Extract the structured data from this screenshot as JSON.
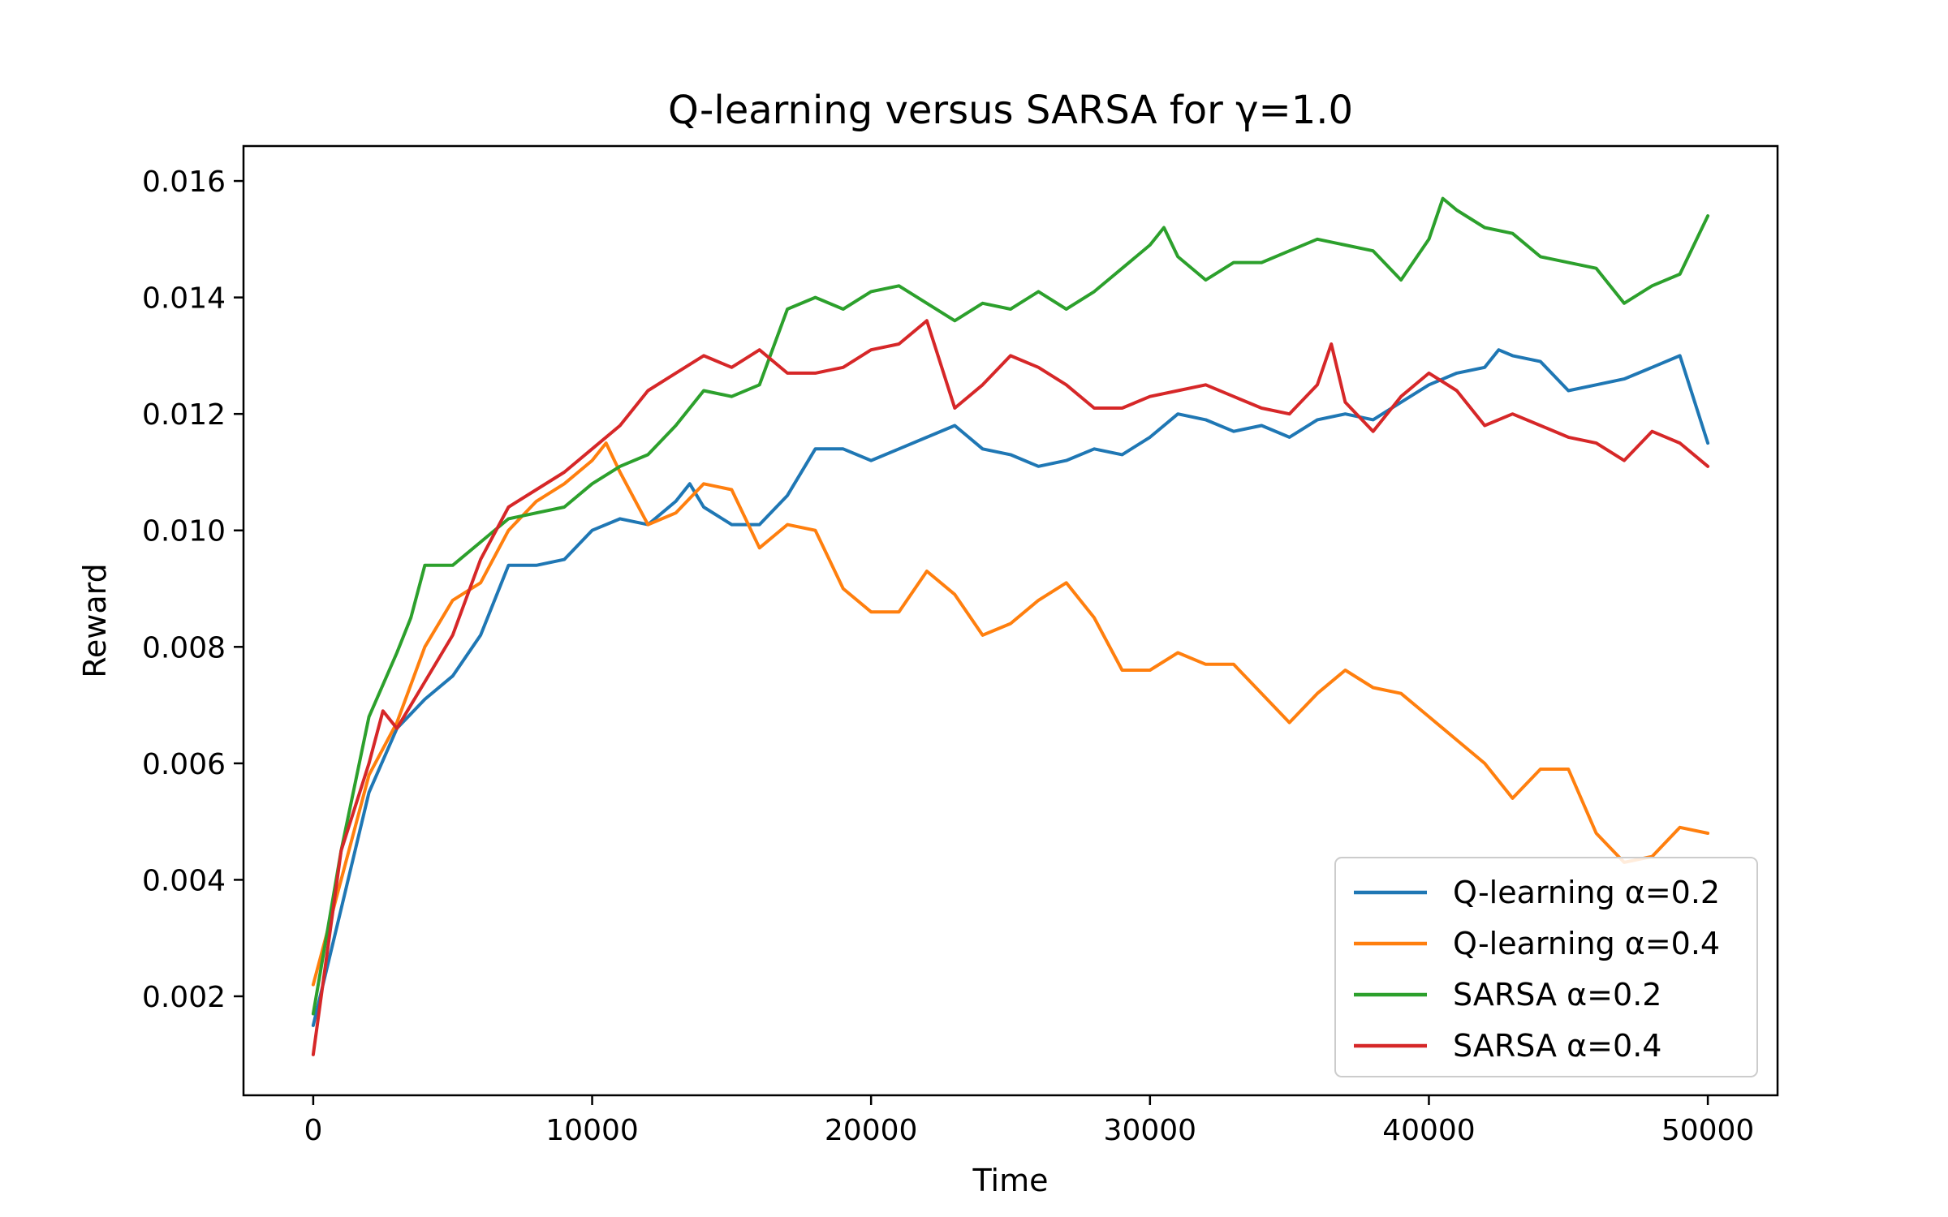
{
  "chart_data": {
    "type": "line",
    "title": "Q-learning versus SARSA for γ=1.0",
    "xlabel": "Time",
    "ylabel": "Reward",
    "xlim": [
      -2500,
      52500
    ],
    "ylim": [
      0.0003,
      0.0166
    ],
    "xticks": [
      0,
      10000,
      20000,
      30000,
      40000,
      50000
    ],
    "xtick_labels": [
      "0",
      "10000",
      "20000",
      "30000",
      "40000",
      "50000"
    ],
    "yticks": [
      0.002,
      0.004,
      0.006,
      0.008,
      0.01,
      0.012,
      0.014,
      0.016
    ],
    "ytick_labels": [
      "0.002",
      "0.004",
      "0.006",
      "0.008",
      "0.010",
      "0.012",
      "0.014",
      "0.016"
    ],
    "grid": false,
    "legend_position": "bottom-right",
    "series": [
      {
        "name": "Q-learning α=0.2",
        "color": "#1f77b4",
        "x": [
          0,
          1000,
          2000,
          3000,
          4000,
          5000,
          6000,
          7000,
          8000,
          9000,
          10000,
          11000,
          12000,
          13000,
          13500,
          14000,
          15000,
          16000,
          17000,
          18000,
          19000,
          20000,
          21000,
          22000,
          23000,
          24000,
          25000,
          26000,
          27000,
          28000,
          29000,
          30000,
          31000,
          32000,
          33000,
          34000,
          35000,
          36000,
          37000,
          38000,
          39000,
          40000,
          41000,
          42000,
          42500,
          43000,
          44000,
          45000,
          46000,
          47000,
          48000,
          49000,
          50000
        ],
        "y": [
          0.0015,
          0.0035,
          0.0055,
          0.0066,
          0.0071,
          0.0075,
          0.0082,
          0.0094,
          0.0094,
          0.0095,
          0.01,
          0.0102,
          0.0101,
          0.0105,
          0.0108,
          0.0104,
          0.0101,
          0.0101,
          0.0106,
          0.0114,
          0.0114,
          0.0112,
          0.0114,
          0.0116,
          0.0118,
          0.0114,
          0.0113,
          0.0111,
          0.0112,
          0.0114,
          0.0113,
          0.0116,
          0.012,
          0.0119,
          0.0117,
          0.0118,
          0.0116,
          0.0119,
          0.012,
          0.0119,
          0.0122,
          0.0125,
          0.0127,
          0.0128,
          0.0131,
          0.013,
          0.0129,
          0.0124,
          0.0125,
          0.0126,
          0.0128,
          0.013,
          0.0115
        ]
      },
      {
        "name": "Q-learning α=0.4",
        "color": "#ff7f0e",
        "x": [
          0,
          1000,
          2000,
          3000,
          4000,
          5000,
          6000,
          7000,
          8000,
          9000,
          10000,
          10500,
          11000,
          12000,
          13000,
          14000,
          15000,
          16000,
          17000,
          18000,
          19000,
          20000,
          21000,
          22000,
          23000,
          24000,
          25000,
          26000,
          27000,
          28000,
          29000,
          30000,
          31000,
          32000,
          33000,
          34000,
          35000,
          36000,
          37000,
          38000,
          39000,
          40000,
          41000,
          42000,
          43000,
          44000,
          45000,
          46000,
          47000,
          48000,
          49000,
          50000
        ],
        "y": [
          0.0022,
          0.004,
          0.0058,
          0.0067,
          0.008,
          0.0088,
          0.0091,
          0.01,
          0.0105,
          0.0108,
          0.0112,
          0.0115,
          0.011,
          0.0101,
          0.0103,
          0.0108,
          0.0107,
          0.0097,
          0.0101,
          0.01,
          0.009,
          0.0086,
          0.0086,
          0.0093,
          0.0089,
          0.0082,
          0.0084,
          0.0088,
          0.0091,
          0.0085,
          0.0076,
          0.0076,
          0.0079,
          0.0077,
          0.0077,
          0.0072,
          0.0067,
          0.0072,
          0.0076,
          0.0073,
          0.0072,
          0.0068,
          0.0064,
          0.006,
          0.0054,
          0.0059,
          0.0059,
          0.0048,
          0.0043,
          0.0044,
          0.0049,
          0.0048
        ]
      },
      {
        "name": "SARSA α=0.2",
        "color": "#2ca02c",
        "x": [
          0,
          1000,
          2000,
          3000,
          3500,
          4000,
          5000,
          6000,
          7000,
          8000,
          9000,
          10000,
          11000,
          12000,
          13000,
          14000,
          15000,
          16000,
          17000,
          18000,
          19000,
          20000,
          21000,
          22000,
          23000,
          24000,
          25000,
          26000,
          27000,
          28000,
          29000,
          30000,
          30500,
          31000,
          32000,
          33000,
          34000,
          35000,
          36000,
          37000,
          38000,
          39000,
          40000,
          40500,
          41000,
          42000,
          43000,
          44000,
          45000,
          46000,
          47000,
          48000,
          49000,
          50000
        ],
        "y": [
          0.0017,
          0.0045,
          0.0068,
          0.0079,
          0.0085,
          0.0094,
          0.0094,
          0.0098,
          0.0102,
          0.0103,
          0.0104,
          0.0108,
          0.0111,
          0.0113,
          0.0118,
          0.0124,
          0.0123,
          0.0125,
          0.0138,
          0.014,
          0.0138,
          0.0141,
          0.0142,
          0.0139,
          0.0136,
          0.0139,
          0.0138,
          0.0141,
          0.0138,
          0.0141,
          0.0145,
          0.0149,
          0.0152,
          0.0147,
          0.0143,
          0.0146,
          0.0146,
          0.0148,
          0.015,
          0.0149,
          0.0148,
          0.0143,
          0.015,
          0.0157,
          0.0155,
          0.0152,
          0.0151,
          0.0147,
          0.0146,
          0.0145,
          0.0139,
          0.0142,
          0.0144,
          0.0154
        ]
      },
      {
        "name": "SARSA α=0.4",
        "color": "#d62728",
        "x": [
          0,
          1000,
          2000,
          2500,
          3000,
          4000,
          5000,
          6000,
          7000,
          8000,
          9000,
          10000,
          11000,
          12000,
          13000,
          14000,
          15000,
          16000,
          17000,
          18000,
          19000,
          20000,
          21000,
          22000,
          23000,
          24000,
          25000,
          26000,
          27000,
          28000,
          29000,
          30000,
          31000,
          32000,
          33000,
          34000,
          35000,
          36000,
          36500,
          37000,
          38000,
          39000,
          40000,
          41000,
          42000,
          43000,
          44000,
          45000,
          46000,
          47000,
          48000,
          49000,
          50000
        ],
        "y": [
          0.001,
          0.0045,
          0.006,
          0.0069,
          0.0066,
          0.0074,
          0.0082,
          0.0095,
          0.0104,
          0.0107,
          0.011,
          0.0114,
          0.0118,
          0.0124,
          0.0127,
          0.013,
          0.0128,
          0.0131,
          0.0127,
          0.0127,
          0.0128,
          0.0131,
          0.0132,
          0.0136,
          0.0121,
          0.0125,
          0.013,
          0.0128,
          0.0125,
          0.0121,
          0.0121,
          0.0123,
          0.0124,
          0.0125,
          0.0123,
          0.0121,
          0.012,
          0.0125,
          0.0132,
          0.0122,
          0.0117,
          0.0123,
          0.0127,
          0.0124,
          0.0118,
          0.012,
          0.0118,
          0.0116,
          0.0115,
          0.0112,
          0.0117,
          0.0115,
          0.0111
        ]
      }
    ]
  }
}
